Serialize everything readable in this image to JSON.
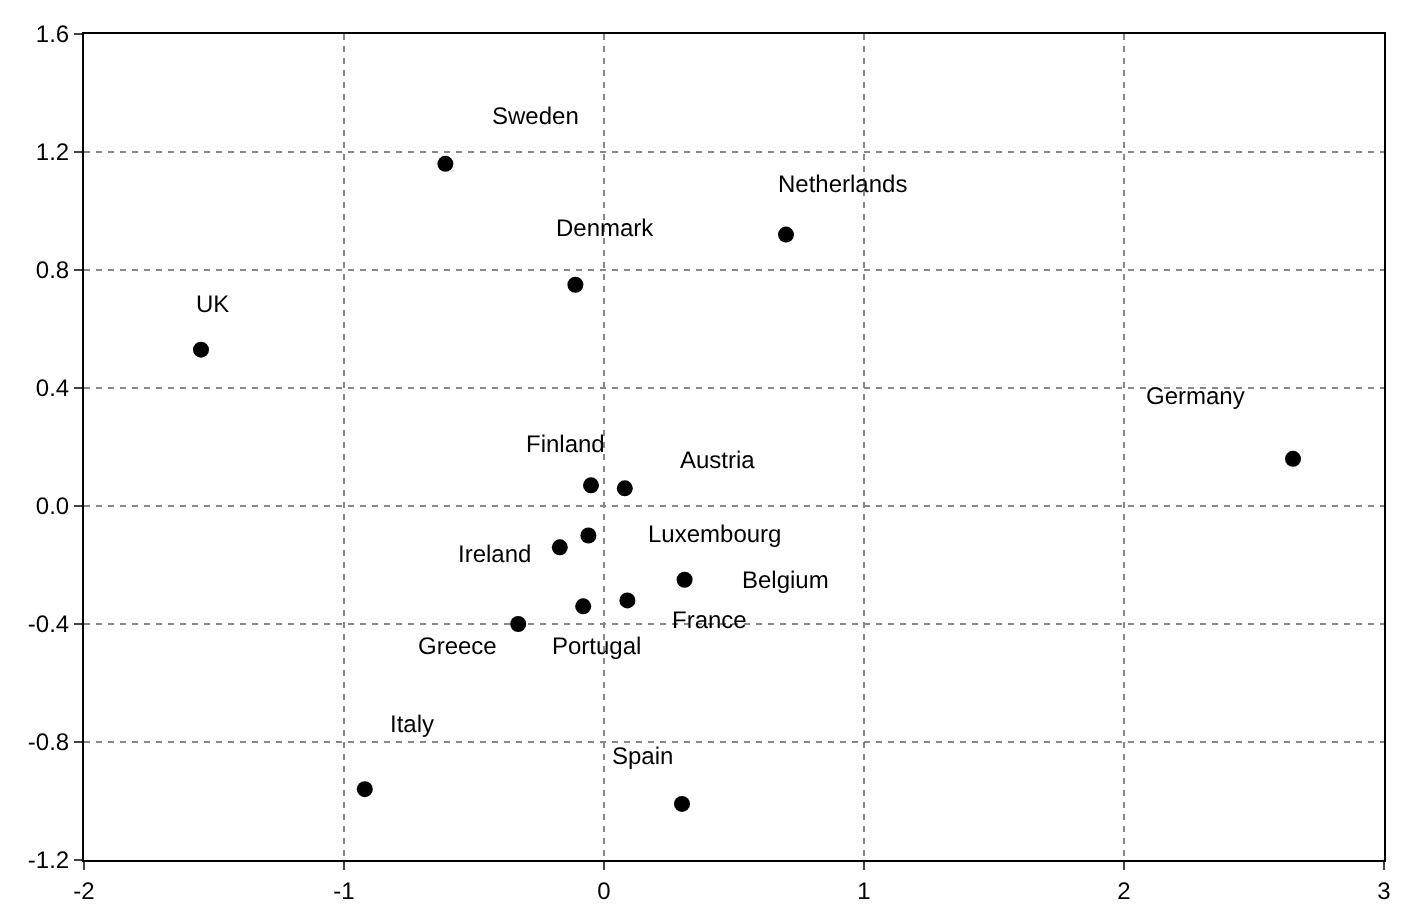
{
  "chart_data": {
    "type": "scatter",
    "x": [
      -0.61,
      -0.11,
      0.7,
      -1.55,
      2.65,
      -0.05,
      0.08,
      -0.06,
      -0.17,
      0.31,
      0.09,
      -0.08,
      -0.33,
      -0.92,
      0.3
    ],
    "series": [
      {
        "color": "#000000",
        "values": [
          1.16,
          0.75,
          0.92,
          0.53,
          0.16,
          0.07,
          0.06,
          -0.1,
          -0.14,
          -0.25,
          -0.32,
          -0.34,
          -0.4,
          -0.96,
          -1.01
        ]
      }
    ],
    "xlim": [
      -2,
      3
    ],
    "xticks": [
      -2,
      -1,
      0,
      1,
      2,
      3
    ],
    "ylim": [
      -1.2,
      1.6
    ],
    "yticks": [
      {
        "value": -1.2,
        "label": "-1.2"
      },
      {
        "value": -0.8,
        "label": "-0.8"
      },
      {
        "value": -0.4,
        "label": "-0.4"
      },
      {
        "value": 0,
        "label": "0.0"
      },
      {
        "value": 0.4,
        "label": "0.4"
      },
      {
        "value": 0.8,
        "label": "0.8"
      },
      {
        "value": 1.2,
        "label": "1.2"
      },
      {
        "value": 1.6,
        "label": "1.6"
      }
    ],
    "grid": true,
    "marker": "circle",
    "annotations": [
      {
        "text": "Sweden",
        "x": -0.61,
        "y": 1.16
      },
      {
        "text": "Denmark",
        "x": -0.11,
        "y": 0.75
      },
      {
        "text": "Netherlands",
        "x": 0.7,
        "y": 0.92
      },
      {
        "text": "UK",
        "x": -1.55,
        "y": 0.53
      },
      {
        "text": "Germany",
        "x": 2.65,
        "y": 0.16
      },
      {
        "text": "Finland",
        "x": -0.05,
        "y": 0.07
      },
      {
        "text": "Austria",
        "x": 0.08,
        "y": 0.06
      },
      {
        "text": "Luxembourg",
        "x": -0.06,
        "y": -0.1
      },
      {
        "text": "Ireland",
        "x": -0.17,
        "y": -0.14
      },
      {
        "text": "Belgium",
        "x": 0.31,
        "y": -0.25
      },
      {
        "text": "France",
        "x": 0.09,
        "y": -0.32
      },
      {
        "text": "Portugal",
        "x": -0.08,
        "y": -0.34
      },
      {
        "text": "Greece",
        "x": -0.33,
        "y": -0.4
      },
      {
        "text": "Italy",
        "x": -0.92,
        "y": -0.96
      },
      {
        "text": "Spain",
        "x": 0.3,
        "y": -1.01
      }
    ]
  }
}
